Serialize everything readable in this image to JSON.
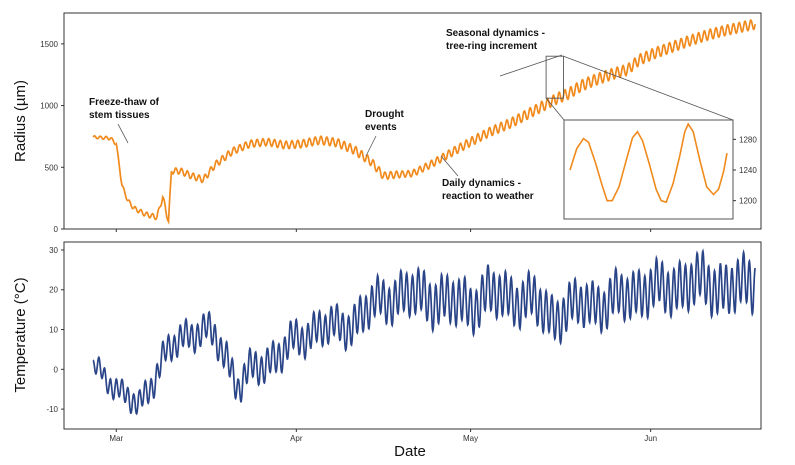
{
  "colors": {
    "radius": "#f08a1c",
    "temperature": "#2a4488",
    "frame": "#333333",
    "connector": "#555555"
  },
  "chart_data": [
    {
      "type": "line",
      "ylabel": "Radius (µm)",
      "xlabel": "",
      "x_range": [
        "2021-02-20",
        "2021-06-20"
      ],
      "ylim": [
        0,
        1750
      ],
      "y_ticks": [
        0,
        500,
        1000,
        1500
      ],
      "x_ticks": [
        {
          "date": "2021-03-01",
          "label": "Mar"
        },
        {
          "date": "2021-04-01",
          "label": "Apr"
        },
        {
          "date": "2021-05-01",
          "label": "May"
        },
        {
          "date": "2021-06-01",
          "label": "Jun"
        }
      ],
      "grid": false,
      "trend_points": [
        [
          "2021-02-25",
          745
        ],
        [
          "2021-02-28",
          735
        ],
        [
          "2021-03-01",
          690
        ],
        [
          "2021-03-02",
          350
        ],
        [
          "2021-03-03",
          230
        ],
        [
          "2021-03-04",
          170
        ],
        [
          "2021-03-06",
          120
        ],
        [
          "2021-03-08",
          95
        ],
        [
          "2021-03-09",
          260
        ],
        [
          "2021-03-10",
          60
        ],
        [
          "2021-03-10.5",
          470
        ],
        [
          "2021-03-12",
          470
        ],
        [
          "2021-03-14",
          430
        ],
        [
          "2021-03-16",
          400
        ],
        [
          "2021-03-18",
          520
        ],
        [
          "2021-03-21",
          630
        ],
        [
          "2021-03-24",
          690
        ],
        [
          "2021-03-27",
          705
        ],
        [
          "2021-03-30",
          680
        ],
        [
          "2021-04-02",
          690
        ],
        [
          "2021-04-05",
          720
        ],
        [
          "2021-04-08",
          700
        ],
        [
          "2021-04-11",
          640
        ],
        [
          "2021-04-14",
          540
        ],
        [
          "2021-04-16",
          430
        ],
        [
          "2021-04-18",
          440
        ],
        [
          "2021-04-21",
          450
        ],
        [
          "2021-04-24",
          520
        ],
        [
          "2021-04-27",
          600
        ],
        [
          "2021-04-30",
          680
        ],
        [
          "2021-05-04",
          780
        ],
        [
          "2021-05-08",
          860
        ],
        [
          "2021-05-12",
          960
        ],
        [
          "2021-05-16",
          1060
        ],
        [
          "2021-05-18",
          1100
        ],
        [
          "2021-05-20",
          1160
        ],
        [
          "2021-05-22",
          1200
        ],
        [
          "2021-05-25",
          1250
        ],
        [
          "2021-05-28",
          1290
        ],
        [
          "2021-05-30",
          1370
        ],
        [
          "2021-06-02",
          1430
        ],
        [
          "2021-06-05",
          1480
        ],
        [
          "2021-06-08",
          1530
        ],
        [
          "2021-06-11",
          1575
        ],
        [
          "2021-06-14",
          1610
        ],
        [
          "2021-06-17",
          1640
        ],
        [
          "2021-06-19",
          1660
        ]
      ],
      "daily_amplitude": [
        [
          "2021-02-25",
          10
        ],
        [
          "2021-03-12",
          25
        ],
        [
          "2021-03-28",
          30
        ],
        [
          "2021-04-12",
          35
        ],
        [
          "2021-04-20",
          25
        ],
        [
          "2021-05-01",
          35
        ],
        [
          "2021-05-20",
          45
        ],
        [
          "2021-06-19",
          40
        ]
      ],
      "annotations": [
        {
          "text": "Freeze-thaw of stem tissues",
          "lines": [
            "Freeze-thaw of",
            "stem tissues"
          ],
          "target": [
            "2021-03-08",
            500
          ]
        },
        {
          "text": "Drought events",
          "lines": [
            "Drought",
            "events"
          ],
          "target": [
            "2021-04-18",
            420
          ]
        },
        {
          "text": "Daily dynamics - reaction to weather",
          "lines": [
            "Daily dynamics -",
            "reaction to weather"
          ],
          "target": [
            "2021-04-30",
            620
          ]
        },
        {
          "text": "Seasonal dynamics - tree-ring increment",
          "lines": [
            "Seasonal dynamics -",
            "tree-ring increment"
          ],
          "target": [
            "2021-05-10",
            1050
          ]
        }
      ],
      "inset": {
        "x_range": [
          "2021-05-14",
          "2021-05-17"
        ],
        "ylim": [
          1180,
          1300
        ],
        "y_ticks": [
          1200,
          1240,
          1280
        ],
        "samples": [
          [
            0.0,
            1240
          ],
          [
            0.08,
            1268
          ],
          [
            0.16,
            1281
          ],
          [
            0.22,
            1276
          ],
          [
            0.3,
            1250
          ],
          [
            0.38,
            1220
          ],
          [
            0.44,
            1200
          ],
          [
            0.5,
            1200
          ],
          [
            0.58,
            1218
          ],
          [
            0.66,
            1250
          ],
          [
            0.74,
            1282
          ],
          [
            0.8,
            1290
          ],
          [
            0.86,
            1278
          ],
          [
            0.94,
            1248
          ],
          [
            1.02,
            1215
          ],
          [
            1.08,
            1200
          ],
          [
            1.14,
            1198
          ],
          [
            1.22,
            1222
          ],
          [
            1.3,
            1258
          ],
          [
            1.36,
            1290
          ],
          [
            1.4,
            1300
          ],
          [
            1.46,
            1290
          ],
          [
            1.54,
            1252
          ],
          [
            1.62,
            1218
          ],
          [
            1.7,
            1208
          ],
          [
            1.76,
            1215
          ],
          [
            1.82,
            1238
          ],
          [
            1.86,
            1262
          ]
        ]
      }
    },
    {
      "type": "line",
      "ylabel": "Temperature (°C)",
      "xlabel": "Date",
      "x_range": [
        "2021-02-20",
        "2021-06-20"
      ],
      "ylim": [
        -15,
        32
      ],
      "y_ticks": [
        -10,
        0,
        10,
        20,
        30
      ],
      "x_ticks": [
        {
          "date": "2021-03-01",
          "label": "Mar"
        },
        {
          "date": "2021-04-01",
          "label": "Apr"
        },
        {
          "date": "2021-05-01",
          "label": "May"
        },
        {
          "date": "2021-06-01",
          "label": "Jun"
        }
      ],
      "grid": false,
      "mean_points": [
        [
          "2021-02-25",
          0
        ],
        [
          "2021-02-28",
          -2
        ],
        [
          "2021-03-02",
          -7
        ],
        [
          "2021-03-05",
          -9
        ],
        [
          "2021-03-07",
          -3
        ],
        [
          "2021-03-09",
          2
        ],
        [
          "2021-03-12",
          8
        ],
        [
          "2021-03-15",
          10
        ],
        [
          "2021-03-18",
          8
        ],
        [
          "2021-03-20",
          3
        ],
        [
          "2021-03-22",
          -4
        ],
        [
          "2021-03-24",
          -1
        ],
        [
          "2021-03-27",
          2
        ],
        [
          "2021-03-30",
          5
        ],
        [
          "2021-04-02",
          8
        ],
        [
          "2021-04-05",
          11
        ],
        [
          "2021-04-08",
          10
        ],
        [
          "2021-04-11",
          12
        ],
        [
          "2021-04-14",
          16
        ],
        [
          "2021-04-17",
          18
        ],
        [
          "2021-04-20",
          19
        ],
        [
          "2021-04-24",
          18
        ],
        [
          "2021-04-27",
          17
        ],
        [
          "2021-05-01",
          16
        ],
        [
          "2021-05-04",
          19
        ],
        [
          "2021-05-08",
          18
        ],
        [
          "2021-05-12",
          17
        ],
        [
          "2021-05-15",
          13
        ],
        [
          "2021-05-18",
          15
        ],
        [
          "2021-05-21",
          17
        ],
        [
          "2021-05-24",
          16
        ],
        [
          "2021-05-28",
          19
        ],
        [
          "2021-06-02",
          20
        ],
        [
          "2021-06-06",
          21
        ],
        [
          "2021-06-10",
          22
        ],
        [
          "2021-06-14",
          20
        ],
        [
          "2021-06-19",
          22
        ]
      ],
      "daily_amplitude": [
        [
          "2021-02-25",
          2
        ],
        [
          "2021-03-08",
          3
        ],
        [
          "2021-03-22",
          3.5
        ],
        [
          "2021-04-08",
          4
        ],
        [
          "2021-04-25",
          5.5
        ],
        [
          "2021-05-20",
          5
        ],
        [
          "2021-06-19",
          6
        ]
      ]
    }
  ]
}
